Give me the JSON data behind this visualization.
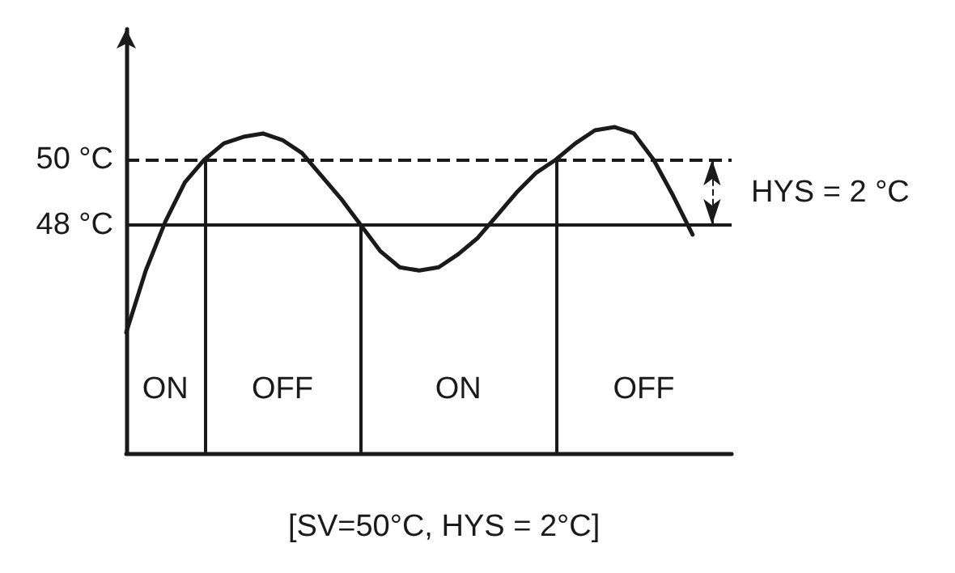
{
  "chart_data": {
    "type": "line",
    "annotations": [
      "ON",
      "OFF",
      "ON",
      "OFF",
      "HYS = 2 °C",
      "[SV=50°C, HYS = 2°C]"
    ],
    "categories": [
      null,
      null,
      null,
      null,
      null,
      null,
      null,
      null,
      null,
      null,
      null,
      null,
      null,
      null,
      null,
      null,
      null,
      null,
      null,
      null,
      null,
      null,
      null,
      null,
      null,
      null,
      null,
      null,
      null,
      null,
      null,
      null
    ],
    "values": [
      44.7,
      46.6,
      48.1,
      49.3,
      50,
      50.5,
      50.7,
      50.8,
      50.6,
      50.2,
      49.5,
      48.8,
      48,
      47.2,
      46.7,
      46.6,
      46.7,
      47.1,
      47.6,
      48.3,
      49.0,
      49.6,
      50,
      50.5,
      50.9,
      51.0,
      50.8,
      50.0,
      48.9,
      47.7,
      null,
      null
    ],
    "color": "#1a1a1a",
    "ylim": [
      41,
      54
    ],
    "yticks": [
      {
        "value": 48,
        "label": "48 °C"
      },
      {
        "value": 50,
        "label": "50 °C"
      }
    ],
    "tick_labels": "y",
    "marker": "none",
    "line_style": "solid",
    "ref_lines": [
      {
        "axis": "y",
        "value": 50,
        "line_style": "dashed"
      },
      {
        "axis": "y",
        "value": 48,
        "line_style": "solid"
      }
    ]
  }
}
